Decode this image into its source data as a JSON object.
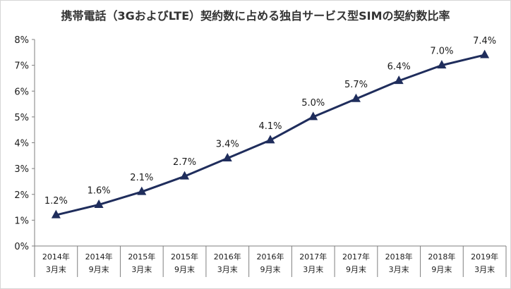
{
  "chart_data": {
    "type": "line",
    "title": "携帯電話（3GおよびLTE）契約数に占める独自サービス型SIMの契約数比率",
    "xlabel": "",
    "ylabel": "",
    "categories": [
      [
        "2014年",
        "3月末"
      ],
      [
        "2014年",
        "9月末"
      ],
      [
        "2015年",
        "3月末"
      ],
      [
        "2015年",
        "9月末"
      ],
      [
        "2016年",
        "3月末"
      ],
      [
        "2016年",
        "9月末"
      ],
      [
        "2017年",
        "3月末"
      ],
      [
        "2017年",
        "9月末"
      ],
      [
        "2018年",
        "3月末"
      ],
      [
        "2018年",
        "9月末"
      ],
      [
        "2019年",
        "3月末"
      ]
    ],
    "series": [
      {
        "values": [
          1.2,
          1.6,
          2.1,
          2.7,
          3.4,
          4.1,
          5.0,
          5.7,
          6.4,
          7.0,
          7.4
        ],
        "data_labels": [
          "1.2%",
          "1.6%",
          "2.1%",
          "2.7%",
          "3.4%",
          "4.1%",
          "5.0%",
          "5.7%",
          "6.4%",
          "7.0%",
          "7.4%"
        ],
        "marker": "triangle",
        "color": "#1f2d5c"
      }
    ],
    "ylim": [
      0,
      8
    ],
    "yticks": [
      "0%",
      "1%",
      "2%",
      "3%",
      "4%",
      "5%",
      "6%",
      "7%",
      "8%"
    ],
    "grid": false,
    "legend": "none"
  }
}
